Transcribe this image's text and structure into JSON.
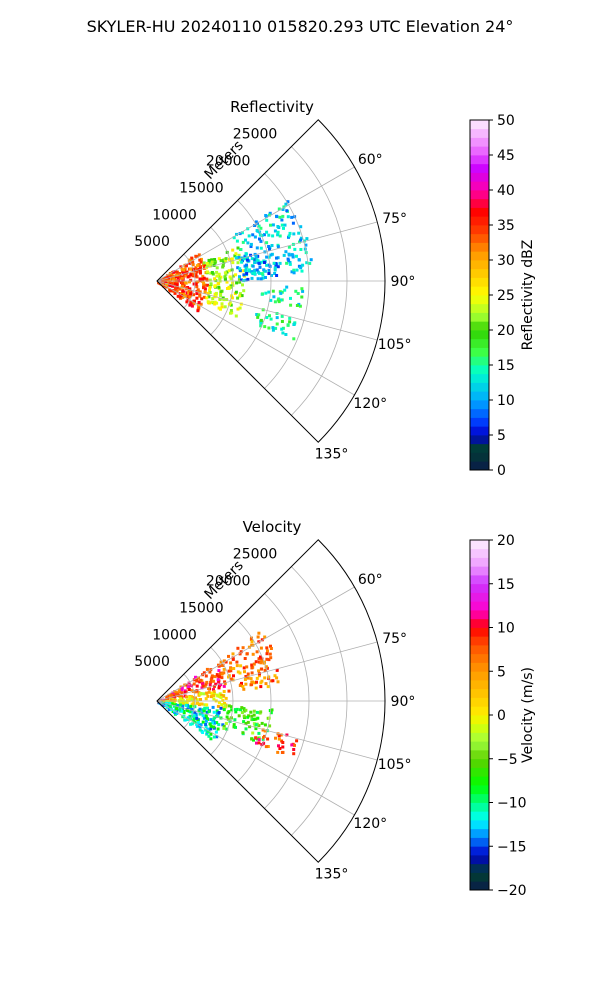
{
  "figure": {
    "title": "SKYLER-HU  20240110  015820.293 UTC Elevation 24°"
  },
  "chart_data": [
    {
      "type": "heatmap",
      "subtype": "polar-sector-radar-ppi",
      "title": "Reflectivity",
      "range_label": "Meters",
      "range_ticks": [
        5000,
        10000,
        15000,
        20000,
        25000
      ],
      "range_max": 30000,
      "azimuth_ticks": [
        "60°",
        "75°",
        "90°",
        "105°",
        "120°",
        "135°"
      ],
      "azimuth_tick_values": [
        60,
        75,
        90,
        105,
        120,
        135
      ],
      "azimuth_range": [
        45,
        135
      ],
      "grid": true,
      "colorbar": {
        "label": "Reflectivity dBZ",
        "min": 0,
        "max": 50,
        "ticks": [
          "0",
          "5",
          "10",
          "15",
          "20",
          "25",
          "30",
          "35",
          "40",
          "45",
          "50"
        ],
        "stops": [
          [
            0,
            "#0a1a4a"
          ],
          [
            3,
            "#004030"
          ],
          [
            5,
            "#0000cc"
          ],
          [
            7,
            "#0040ff"
          ],
          [
            10,
            "#00aaff"
          ],
          [
            14,
            "#00ffcc"
          ],
          [
            17,
            "#40ff40"
          ],
          [
            20,
            "#30d000"
          ],
          [
            22,
            "#a0ff30"
          ],
          [
            25,
            "#ffff00"
          ],
          [
            28,
            "#ffcc00"
          ],
          [
            31,
            "#ff9900"
          ],
          [
            34,
            "#ff4000"
          ],
          [
            37,
            "#ff0000"
          ],
          [
            40,
            "#ff00aa"
          ],
          [
            43,
            "#cc00ff"
          ],
          [
            46,
            "#ee77ff"
          ],
          [
            50,
            "#fdf0ff"
          ]
        ]
      },
      "echo_regions": [
        {
          "az": [
            53,
            127
          ],
          "range": [
            0,
            6500
          ],
          "value": 34
        },
        {
          "az": [
            66,
            114
          ],
          "range": [
            6500,
            11500
          ],
          "value": 23
        },
        {
          "az": [
            58,
            86
          ],
          "range": [
            11500,
            20500
          ],
          "value": 12
        },
        {
          "az": [
            92,
            100
          ],
          "range": [
            13500,
            19000
          ],
          "value": 14
        },
        {
          "az": [
            104,
            113
          ],
          "range": [
            13500,
            19500
          ],
          "value": 15
        },
        {
          "az": [
            72,
            90
          ],
          "range": [
            10500,
            16000
          ],
          "value": 10
        }
      ]
    },
    {
      "type": "heatmap",
      "subtype": "polar-sector-radar-ppi",
      "title": "Velocity",
      "range_label": "Meters",
      "range_ticks": [
        5000,
        10000,
        15000,
        20000,
        25000
      ],
      "range_max": 30000,
      "azimuth_ticks": [
        "60°",
        "75°",
        "90°",
        "105°",
        "120°",
        "135°"
      ],
      "azimuth_tick_values": [
        60,
        75,
        90,
        105,
        120,
        135
      ],
      "azimuth_range": [
        45,
        135
      ],
      "grid": true,
      "colorbar": {
        "label": "Velocity (m/s)",
        "min": -20,
        "max": 20,
        "ticks": [
          "−20",
          "−15",
          "−10",
          "−5",
          "0",
          "5",
          "10",
          "15",
          "20"
        ],
        "stops": [
          [
            -20,
            "#0a1a4a"
          ],
          [
            -18,
            "#004030"
          ],
          [
            -16,
            "#0000cc"
          ],
          [
            -14,
            "#0080ff"
          ],
          [
            -12,
            "#00ffff"
          ],
          [
            -10,
            "#00ff80"
          ],
          [
            -8,
            "#00ff00"
          ],
          [
            -5,
            "#60d000"
          ],
          [
            -3,
            "#a0ff40"
          ],
          [
            -1,
            "#ddff00"
          ],
          [
            0,
            "#ffee00"
          ],
          [
            2,
            "#ffcc00"
          ],
          [
            5,
            "#ff9900"
          ],
          [
            8,
            "#ff5000"
          ],
          [
            10,
            "#ff0000"
          ],
          [
            12,
            "#ff00cc"
          ],
          [
            15,
            "#cc33ff"
          ],
          [
            17,
            "#ee99ff"
          ],
          [
            20,
            "#fdf0ff"
          ]
        ]
      },
      "echo_regions": [
        {
          "az": [
            55,
            78
          ],
          "range": [
            0,
            9000
          ],
          "value": 9
        },
        {
          "az": [
            78,
            95
          ],
          "range": [
            0,
            9000
          ],
          "value": 1
        },
        {
          "az": [
            95,
            125
          ],
          "range": [
            0,
            9000
          ],
          "value": -11
        },
        {
          "az": [
            55,
            82
          ],
          "range": [
            9000,
            16500
          ],
          "value": 6
        },
        {
          "az": [
            92,
            112
          ],
          "range": [
            9000,
            15000
          ],
          "value": -6
        },
        {
          "az": [
            104,
            113
          ],
          "range": [
            13500,
            19500
          ],
          "value": 8
        }
      ]
    }
  ]
}
